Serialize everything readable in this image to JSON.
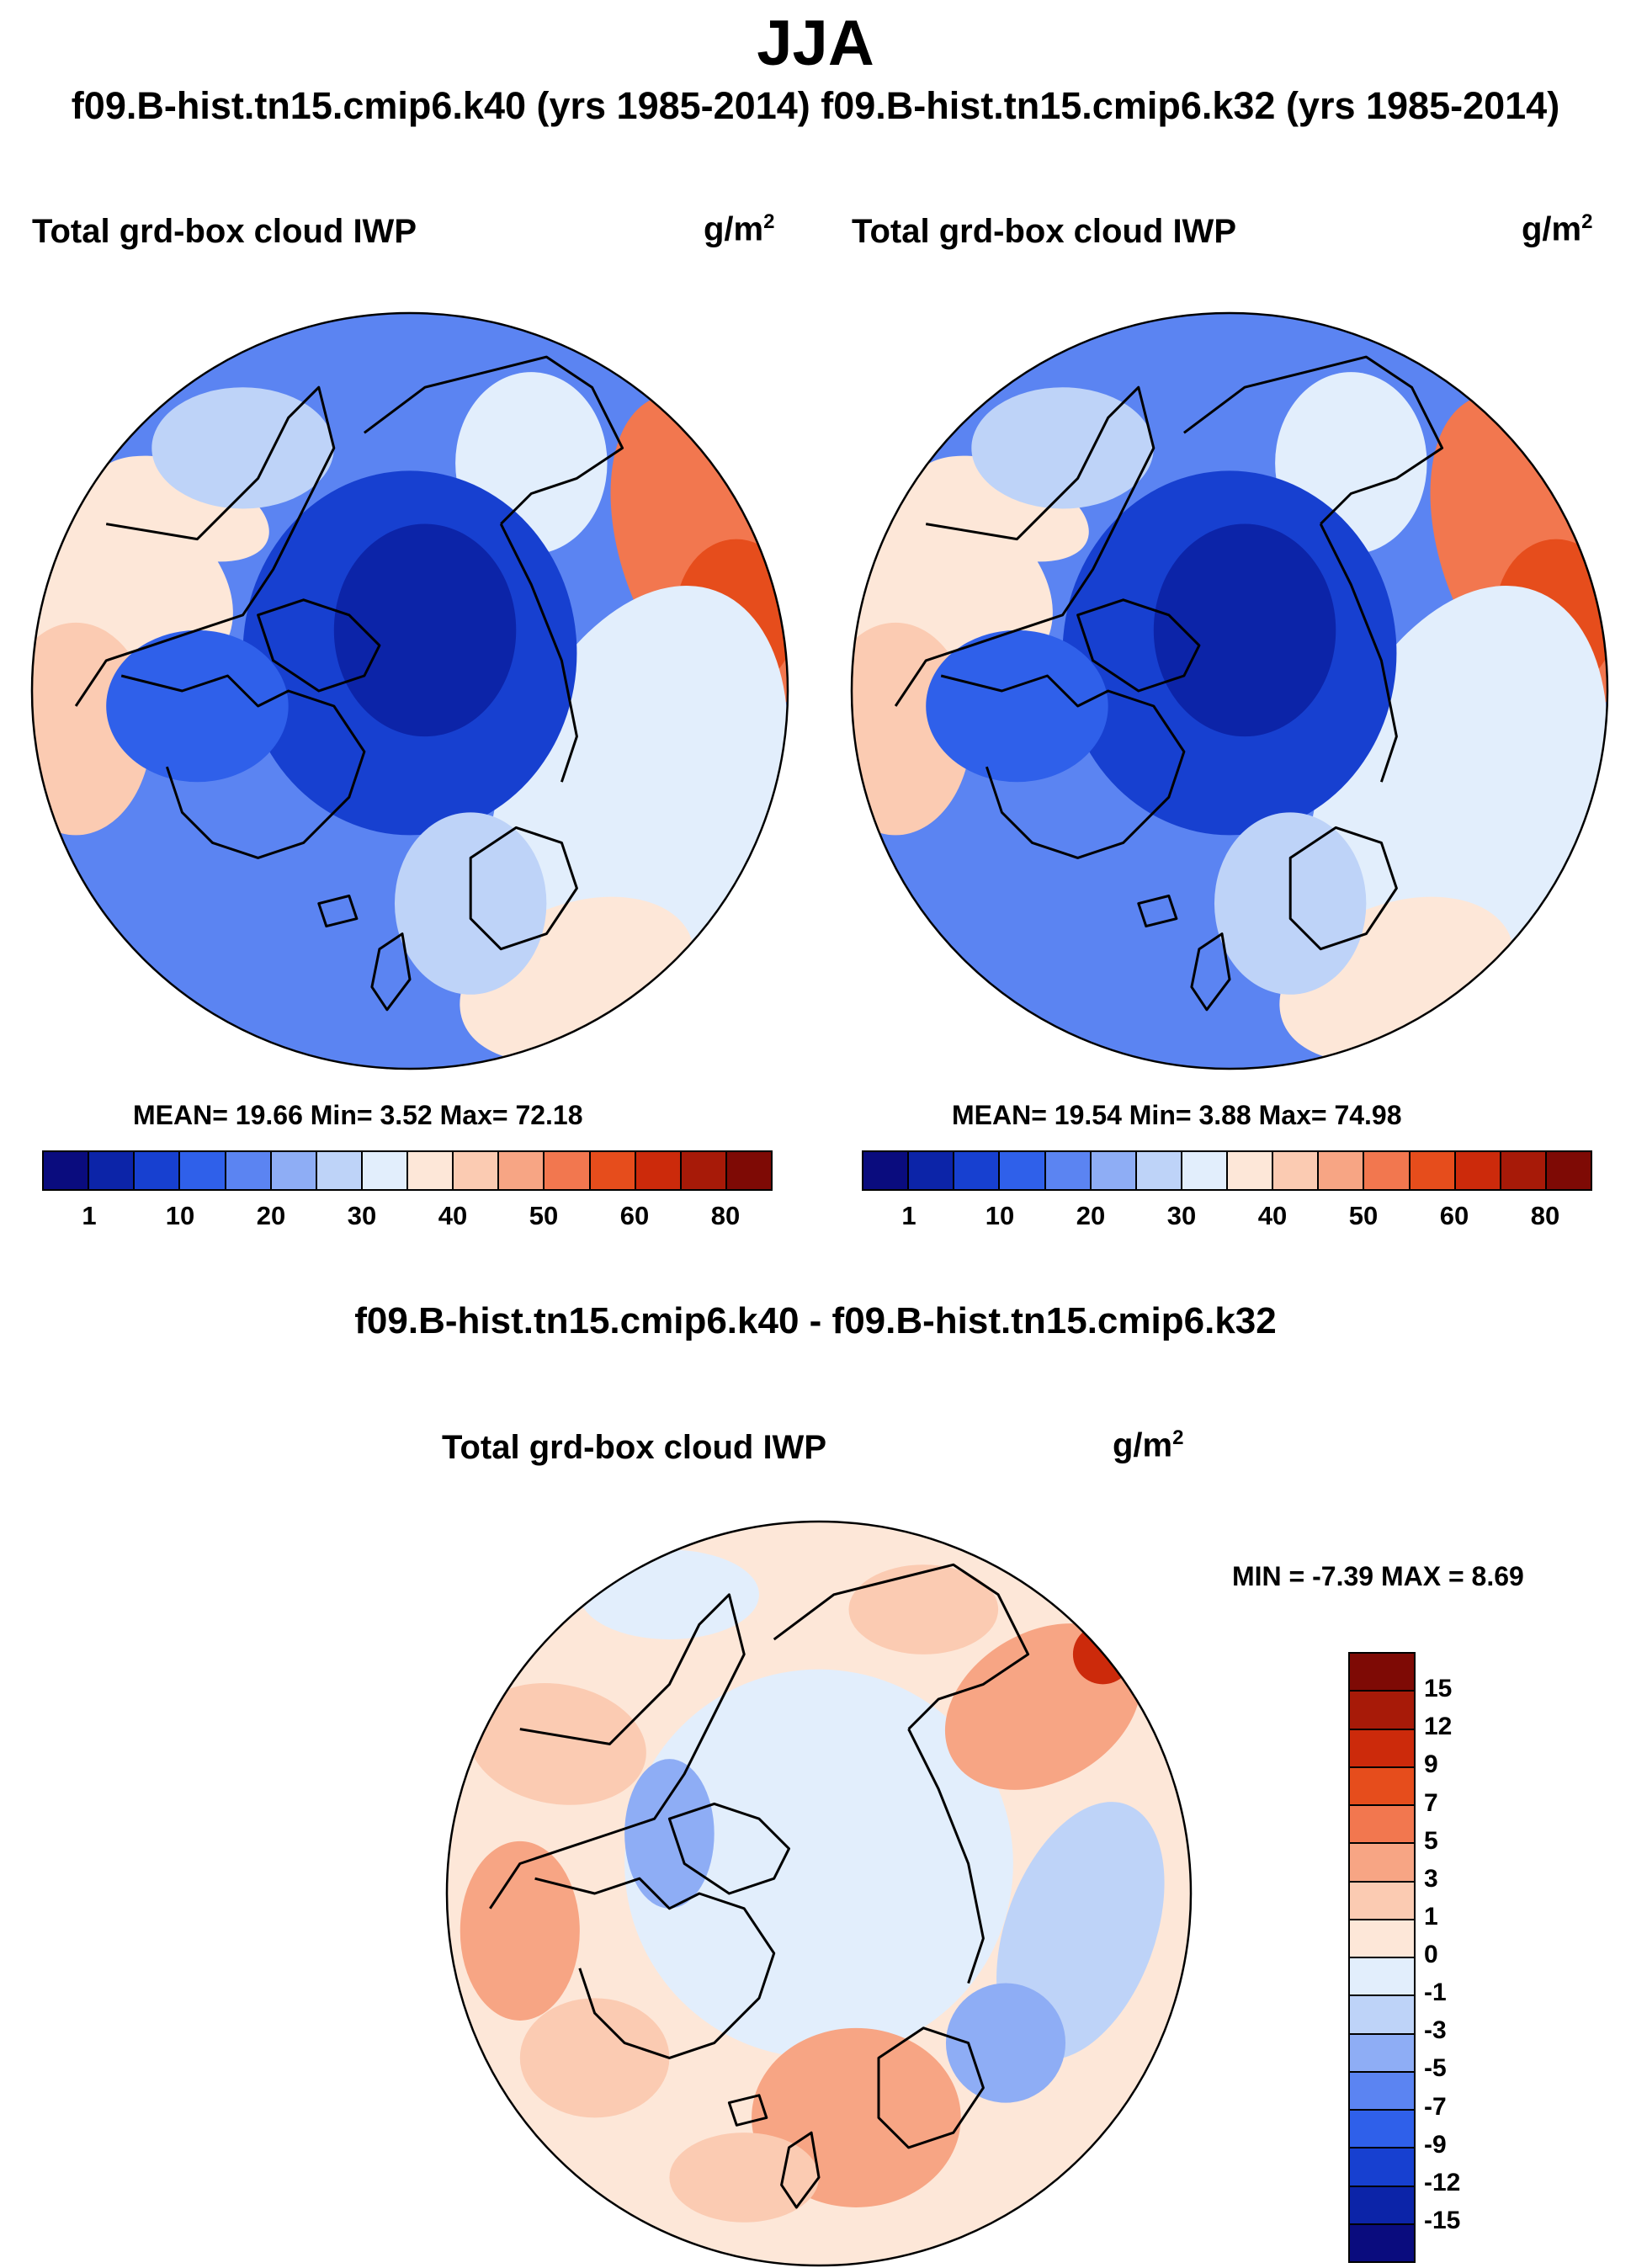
{
  "season": "JJA",
  "header": "f09.B-hist.tn15.cmip6.k40 (yrs 1985-2014) f09.B-hist.tn15.cmip6.k32 (yrs 1985-2014)",
  "panels": [
    {
      "variable": "Total grd-box cloud IWP",
      "units_base": "g/m",
      "units_exp": "2",
      "stats_text": "MEAN=  19.66  Min=   3.52  Max=  72.18",
      "mean": 19.66,
      "min": 3.52,
      "max": 72.18
    },
    {
      "variable": "Total grd-box cloud IWP",
      "units_base": "g/m",
      "units_exp": "2",
      "stats_text": "MEAN=  19.54  Min=   3.88  Max=  74.98",
      "mean": 19.54,
      "min": 3.88,
      "max": 74.98
    }
  ],
  "colorbar": {
    "colors": [
      "#0a0c7e",
      "#0c24a8",
      "#1740d0",
      "#2f60ea",
      "#5b84f2",
      "#8eadf5",
      "#bed3f8",
      "#e2eefc",
      "#fde7d8",
      "#fbcbb2",
      "#f7a584",
      "#f2774f",
      "#e64d1c",
      "#cc2a0b",
      "#a71a08",
      "#7e0a05"
    ],
    "tick_labels": [
      "1",
      "10",
      "20",
      "30",
      "40",
      "50",
      "60",
      "80"
    ]
  },
  "diff": {
    "title": "f09.B-hist.tn15.cmip6.k40 - f09.B-hist.tn15.cmip6.k32",
    "variable": "Total grd-box cloud IWP",
    "units_base": "g/m",
    "units_exp": "2",
    "minmax_text": "MIN =  -7.39 MAX =   8.69",
    "min": -7.39,
    "max": 8.69
  },
  "diff_colorbar": {
    "colors": [
      "#7e0a05",
      "#a71a08",
      "#cc2a0b",
      "#e64d1c",
      "#f2774f",
      "#f7a584",
      "#fbcbb2",
      "#fde7d8",
      "#e2eefc",
      "#bed3f8",
      "#8eadf5",
      "#5b84f2",
      "#2f60ea",
      "#1740d0",
      "#0c24a8",
      "#0a0c7e"
    ],
    "tick_labels": [
      "15",
      "12",
      "9",
      "7",
      "5",
      "3",
      "1",
      "0",
      "-1",
      "-3",
      "-5",
      "-7",
      "-9",
      "-12",
      "-15"
    ]
  }
}
